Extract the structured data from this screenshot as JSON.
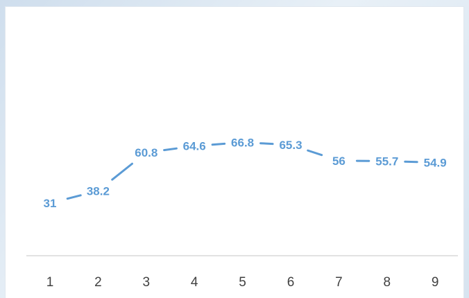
{
  "chart_data": {
    "type": "line",
    "x": [
      "1",
      "2",
      "3",
      "4",
      "5",
      "6",
      "7",
      "8",
      "9"
    ],
    "series": [
      {
        "values": [
          31,
          38.2,
          60.8,
          64.6,
          66.8,
          65.3,
          56,
          55.7,
          54.9
        ],
        "labels": [
          "31",
          "38.2",
          "60.8",
          "64.6",
          "66.8",
          "65.3",
          "56",
          "55.7",
          "54.9"
        ]
      }
    ],
    "ylim": [
      0,
      100
    ],
    "grid": false,
    "legend": "none"
  },
  "colors": {
    "line": "#5b9bd5",
    "axis": "#d9d9d9",
    "tick_text": "#404040"
  }
}
